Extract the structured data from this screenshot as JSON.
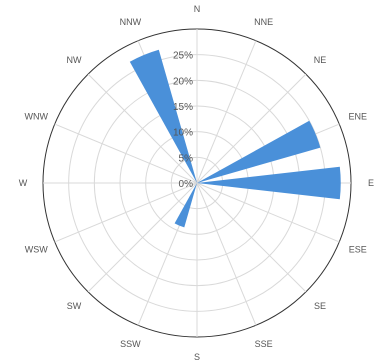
{
  "chart_data": {
    "type": "polar-bar",
    "title": "",
    "directions": [
      "N",
      "NNE",
      "NE",
      "ENE",
      "E",
      "ESE",
      "SE",
      "SSE",
      "S",
      "SSW",
      "SW",
      "WSW",
      "W",
      "WNW",
      "NW",
      "NNW"
    ],
    "values": [
      0,
      0,
      0,
      25,
      28,
      0,
      0,
      0,
      0,
      9,
      0,
      0,
      0,
      0,
      0,
      27
    ],
    "units": "%",
    "radial_ticks": [
      "0%",
      "5%",
      "10%",
      "15%",
      "20%",
      "25%"
    ],
    "radial_range": [
      0,
      30
    ],
    "grid": true,
    "bar_color": "#4a90d9",
    "grid_color": "#d9d9d9",
    "outer_ring_color": "#333333"
  }
}
